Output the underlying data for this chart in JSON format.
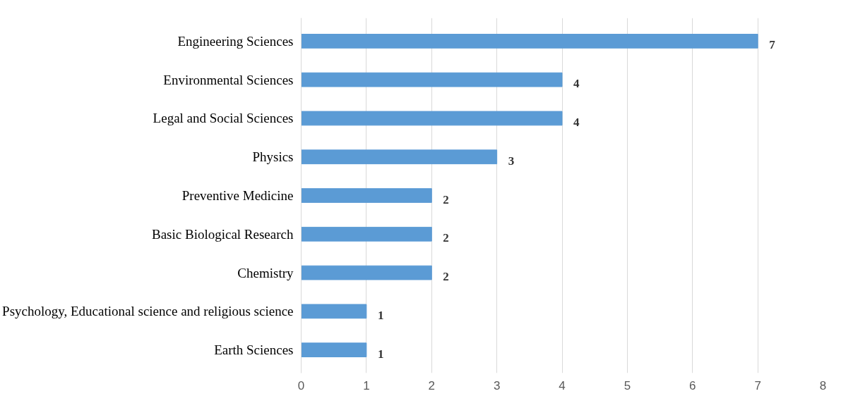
{
  "chart_data": {
    "type": "bar",
    "orientation": "horizontal",
    "categories": [
      "Engineering Sciences",
      "Environmental Sciences",
      "Legal and Social Sciences",
      "Physics",
      "Preventive Medicine",
      "Basic Biological Research",
      "Chemistry",
      "Psychology, Educational science and religious science",
      "Earth Sciences"
    ],
    "values": [
      7,
      4,
      4,
      3,
      2,
      2,
      2,
      1,
      1
    ],
    "color": "#5b9bd5",
    "xlim": [
      0,
      8
    ],
    "xticks": [
      0,
      1,
      2,
      3,
      4,
      5,
      6,
      7,
      8
    ],
    "grid": "x",
    "data_labels": true
  }
}
